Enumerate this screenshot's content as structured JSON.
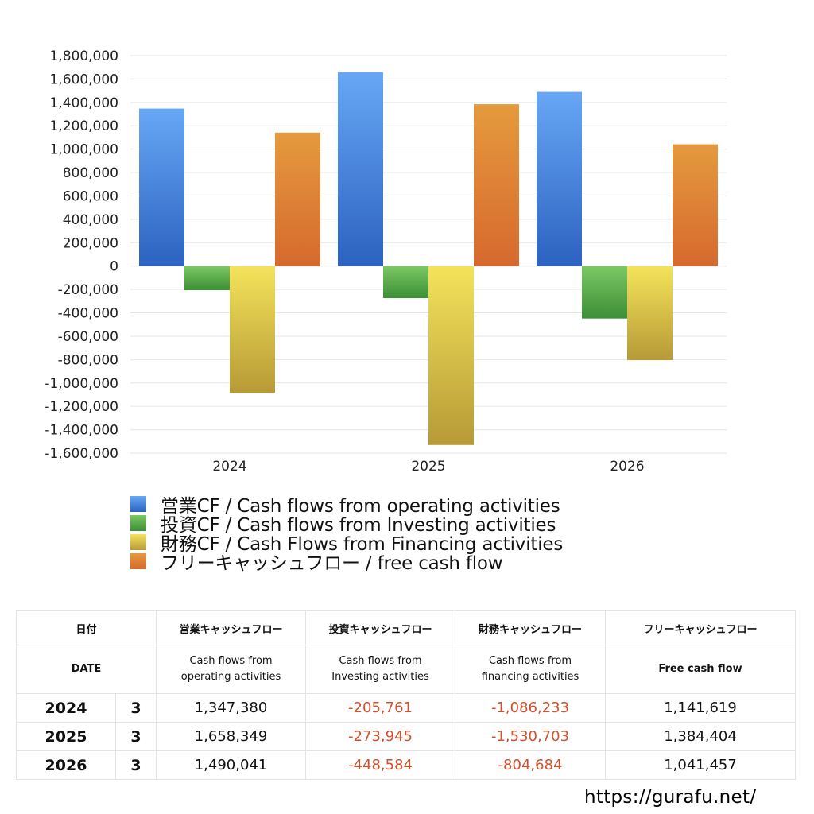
{
  "chart_data": {
    "type": "bar",
    "categories": [
      "2024",
      "2025",
      "2026"
    ],
    "series": [
      {
        "name": "営業CF / Cash flows from operating activities",
        "values": [
          1347380,
          1658349,
          1490041
        ]
      },
      {
        "name": "投資CF / Cash flows from Investing activities",
        "values": [
          -205761,
          -273945,
          -448584
        ]
      },
      {
        "name": "財務CF / Cash Flows from Financing activities",
        "values": [
          -1086233,
          -1530703,
          -804684
        ]
      },
      {
        "name": "フリーキャッシュフロー / free cash flow",
        "values": [
          1141619,
          1384404,
          1041457
        ]
      }
    ],
    "ylim": [
      -1600000,
      1800000
    ],
    "yticks": [
      "1,800,000",
      "1,600,000",
      "1,400,000",
      "1,200,000",
      "1,000,000",
      "800,000",
      "600,000",
      "400,000",
      "200,000",
      "0",
      "-200,000",
      "-400,000",
      "-600,000",
      "-800,000",
      "-1,000,000",
      "-1,200,000",
      "-1,400,000",
      "-1,600,000"
    ],
    "grid": true,
    "legend_position": "bottom"
  },
  "colors": {
    "operating": [
      "#67a7f5",
      "#2c62c0"
    ],
    "investing": [
      "#7cc865",
      "#3b8f35"
    ],
    "financing": [
      "#f4e35a",
      "#b79a37"
    ],
    "free": [
      "#e59a3e",
      "#d6692e"
    ],
    "negative_text": "#d2502a"
  },
  "table": {
    "headers_ja": [
      "日付",
      "営業キャッシュフロー",
      "投資キャッシュフロー",
      "財務キャッシュフロー",
      "フリーキャッシュフロー"
    ],
    "headers_en": {
      "date": "DATE",
      "operating": [
        "Cash flows from",
        "operating activities"
      ],
      "investing": [
        "Cash flows from",
        "Investing activities"
      ],
      "financing": [
        "Cash flows from",
        "financing activities"
      ],
      "free": "Free cash flow"
    },
    "rows": [
      {
        "year": "2024",
        "month": "3",
        "operating": "1,347,380",
        "investing": "-205,761",
        "financing": "-1,086,233",
        "free": "1,141,619"
      },
      {
        "year": "2025",
        "month": "3",
        "operating": "1,658,349",
        "investing": "-273,945",
        "financing": "-1,530,703",
        "free": "1,384,404"
      },
      {
        "year": "2026",
        "month": "3",
        "operating": "1,490,041",
        "investing": "-448,584",
        "financing": "-804,684",
        "free": "1,041,457"
      }
    ]
  },
  "site_url": "https://gurafu.net/"
}
